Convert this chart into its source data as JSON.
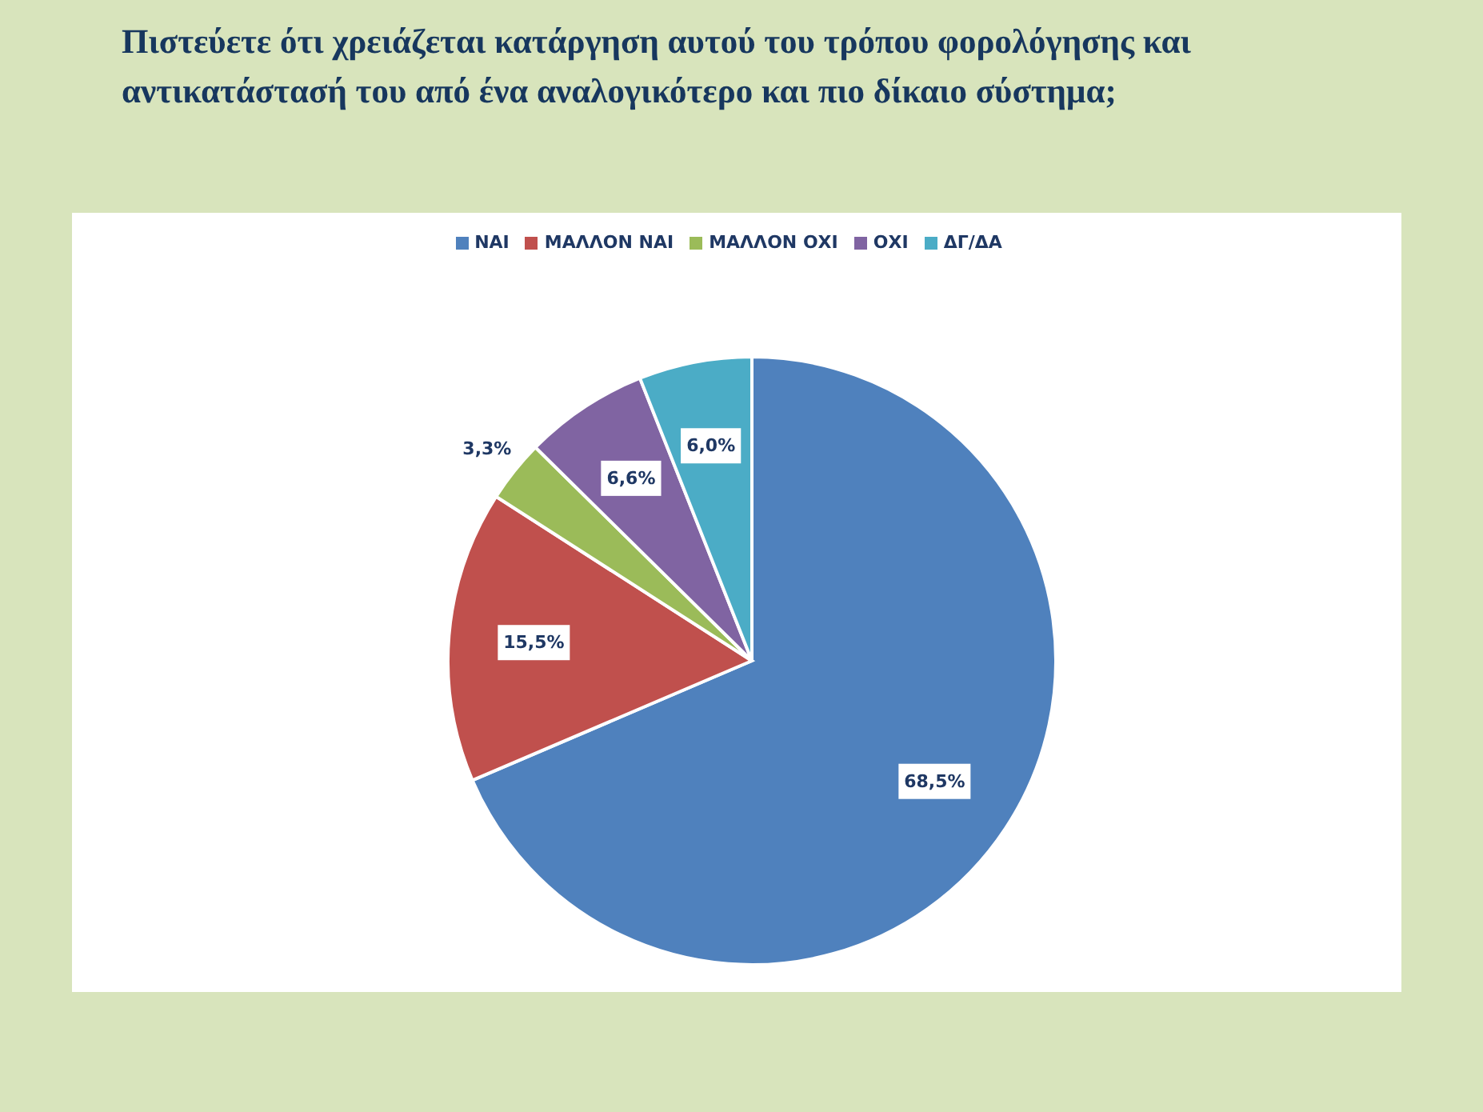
{
  "chart_data": {
    "type": "pie",
    "title": "Πιστεύετε ότι χρειάζεται κατάργηση αυτού του τρόπου φορολόγησης και αντικατάστασή του από ένα αναλογικότερο και πιο δίκαιο σύστημα;",
    "categories": [
      "ΝΑΙ",
      "ΜΑΛΛΟΝ ΝΑΙ",
      "ΜΑΛΛΟΝ ΟΧΙ",
      "ΟΧΙ",
      "ΔΓ/ΔΑ"
    ],
    "values": [
      68.5,
      15.5,
      3.3,
      6.6,
      6.0
    ],
    "colors": [
      "#4f81bd",
      "#c0504d",
      "#9bbb59",
      "#8064a2",
      "#4bacc6"
    ],
    "value_labels": [
      "68,5%",
      "15,5%",
      "3,3%",
      "6,6%",
      "6,0%"
    ],
    "legend": "top"
  }
}
